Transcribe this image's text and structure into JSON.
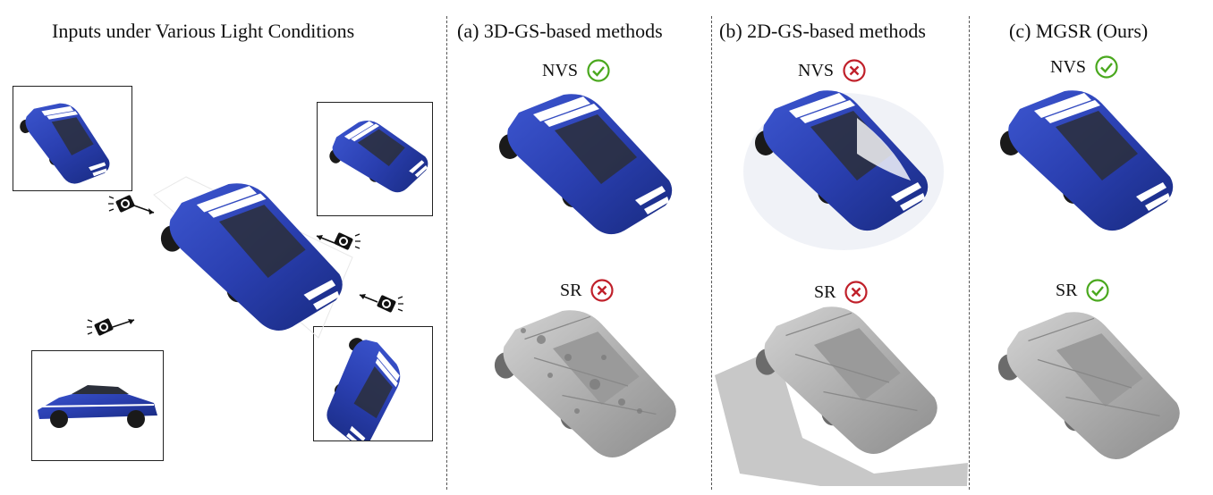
{
  "panels": {
    "inputs": {
      "title": "Inputs under Various Light Conditions"
    },
    "a": {
      "title": "(a) 3D-GS-based methods",
      "nvs_label": "NVS",
      "nvs_status": "check",
      "sr_label": "SR",
      "sr_status": "cross"
    },
    "b": {
      "title": "(b) 2D-GS-based methods",
      "nvs_label": "NVS",
      "nvs_status": "cross",
      "sr_label": "SR",
      "sr_status": "cross"
    },
    "c": {
      "title": "(c) MGSR (Ours)",
      "nvs_label": "NVS",
      "nvs_status": "check",
      "sr_label": "SR",
      "sr_status": "check"
    }
  },
  "colors": {
    "check": "#4aa81e",
    "cross": "#c0202a",
    "car_blue": "#2a3fb0",
    "car_dark_blue": "#1a2480",
    "stripe": "#ffffff",
    "mesh_gray": "#b8b8b8"
  },
  "icons": {
    "camera": "camera-icon",
    "check": "check-circle-icon",
    "cross": "cross-circle-icon"
  }
}
